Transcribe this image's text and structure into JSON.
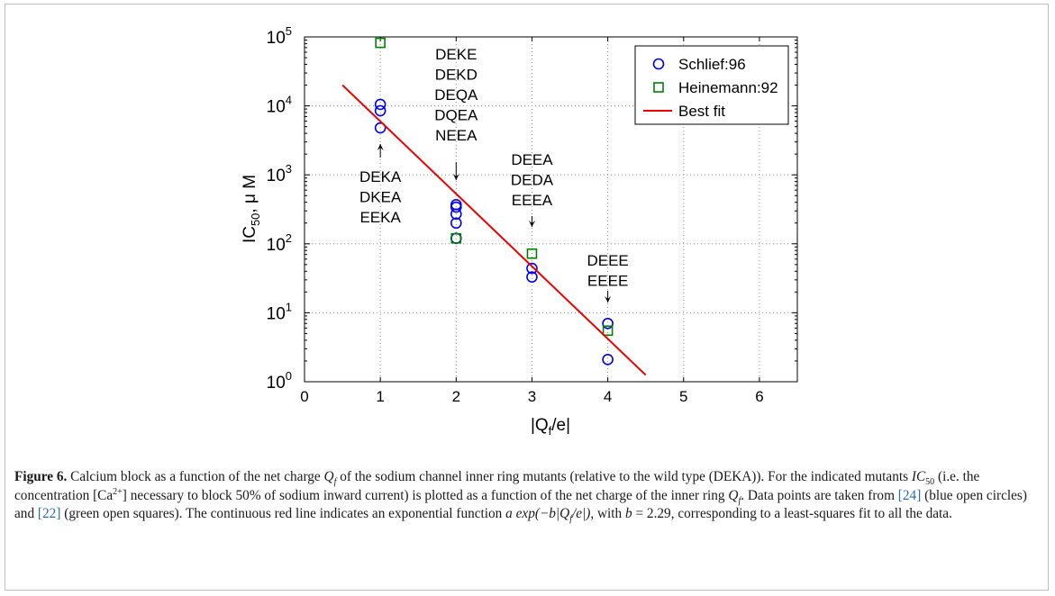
{
  "chart_data": {
    "type": "scatter",
    "xlabel_main": "|Q",
    "xlabel_sub": "f",
    "xlabel_end": "/e|",
    "ylabel_main": "IC",
    "ylabel_sub": "50",
    "ylabel_end": ", μ M",
    "xlim": [
      0,
      6.5
    ],
    "ylim": [
      1,
      100000
    ],
    "yscale": "log",
    "grid": true,
    "legend_position": "top-right",
    "x_ticks": [
      "0",
      "1",
      "2",
      "3",
      "4",
      "5",
      "6"
    ],
    "y_ticks": [
      {
        "base": "10",
        "exp": "0"
      },
      {
        "base": "10",
        "exp": "1"
      },
      {
        "base": "10",
        "exp": "2"
      },
      {
        "base": "10",
        "exp": "3"
      },
      {
        "base": "10",
        "exp": "4"
      },
      {
        "base": "10",
        "exp": "5"
      }
    ],
    "series": [
      {
        "name": "Schlief:96",
        "marker": "circle",
        "color": "#0000ee",
        "points": [
          [
            1,
            10500
          ],
          [
            1,
            8500
          ],
          [
            1,
            4800
          ],
          [
            2,
            370
          ],
          [
            2,
            340
          ],
          [
            2,
            270
          ],
          [
            2,
            200
          ],
          [
            2,
            120
          ],
          [
            3,
            44
          ],
          [
            3,
            33
          ],
          [
            4,
            7
          ],
          [
            4,
            2.1
          ]
        ]
      },
      {
        "name": "Heinemann:92",
        "marker": "square",
        "color": "#008000",
        "points": [
          [
            1,
            82000
          ],
          [
            2,
            120
          ],
          [
            3,
            72
          ],
          [
            4,
            5.5
          ]
        ]
      },
      {
        "name": "Best fit",
        "marker": "line",
        "color": "#ee0000",
        "points": [
          [
            0.5,
            20000
          ],
          [
            4.5,
            1.25
          ]
        ]
      }
    ],
    "annotations": [
      {
        "lines": [
          "DEKA",
          "DKEA",
          "EEKA"
        ],
        "arrow_x": 1,
        "arrow_dir": "up"
      },
      {
        "lines": [
          "DEKE",
          "DEKD",
          "DEQA",
          "DQEA",
          "NEEA"
        ],
        "arrow_x": 2,
        "arrow_dir": "down"
      },
      {
        "lines": [
          "DEEA",
          "DEDA",
          "EEEA"
        ],
        "arrow_x": 3,
        "arrow_dir": "down"
      },
      {
        "lines": [
          "DEEE",
          "EEEE"
        ],
        "arrow_x": 4,
        "arrow_dir": "down"
      }
    ]
  },
  "caption": {
    "label": "Figure 6.",
    "t1": " Calcium block as a function of the net charge ",
    "q": "Q",
    "qf": "f",
    "t2": " of the sodium channel inner ring mutants (relative to the wild type (DEKA)). For the indicated mutants ",
    "ic": "IC",
    "ic50": "50",
    "t3": " (i.e. the concentration [Ca",
    "sup": "2+",
    "t4": "] necessary to block 50% of sodium inward current) is plotted as a function of the net charge of the inner ring ",
    "t5": ". Data points are taken from ",
    "ref1": "[24]",
    "t6": " (blue open circles) and ",
    "ref2": "[22]",
    "t7": " (green open squares). The continuous red line indicates an exponential function ",
    "formula": "a exp(−b|Q",
    "formula_sub": "f",
    "formula_end": "/e|)",
    "t8": ", with ",
    "bval": "b",
    "t9": " = 2.29, corresponding to a least-squares fit to all the data."
  }
}
